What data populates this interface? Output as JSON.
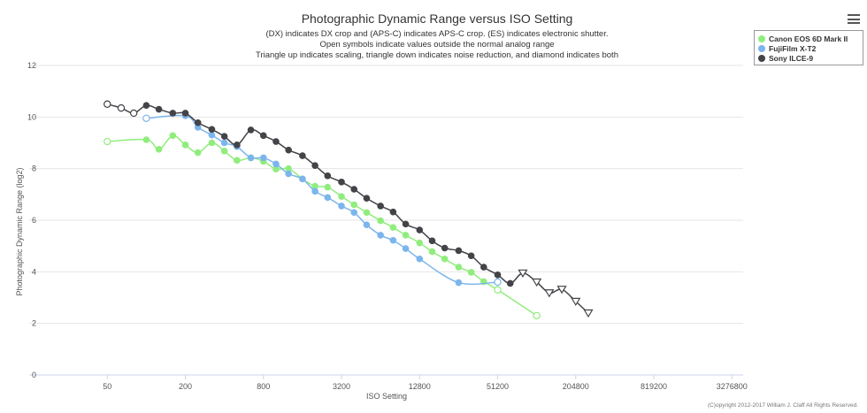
{
  "chart_data": {
    "type": "line",
    "title": "Photographic Dynamic Range versus ISO Setting",
    "subtitle_lines": [
      "(DX) indicates DX crop and (APS-C) indicates APS-C crop. (ES) indicates electronic shutter.",
      "Open symbols indicate values outside the normal analog range",
      "Triangle up indicates scaling, triangle down indicates noise reduction, and diamond indicates both"
    ],
    "xlabel": "ISO Setting",
    "ylabel": "Photographic Dynamic Range (log2)",
    "x_scale": "log",
    "xlim": [
      12.5,
      4000000
    ],
    "ylim": [
      0,
      12
    ],
    "x_ticks": [
      50,
      200,
      800,
      3200,
      12800,
      51200,
      204800,
      819200,
      3276800
    ],
    "x_tick_labels": [
      "50",
      "200",
      "800",
      "3200",
      "12800",
      "51200",
      "204800",
      "819200",
      "3276800"
    ],
    "y_ticks": [
      0,
      2,
      4,
      6,
      8,
      10,
      12
    ],
    "y_tick_labels": [
      "0",
      "2",
      "4",
      "6",
      "8",
      "10",
      "12"
    ],
    "grid": true,
    "legend_position": "top-right",
    "credit": "(C)opyright 2012-2017 William J. Claff All Rights Reserved.",
    "series": [
      {
        "name": "Canon EOS 6D Mark II",
        "color": "#90ed7d",
        "points": [
          {
            "x": 50,
            "y": 9.05,
            "marker": "circle-open"
          },
          {
            "x": 100,
            "y": 9.12,
            "marker": "circle"
          },
          {
            "x": 125,
            "y": 8.75,
            "marker": "circle"
          },
          {
            "x": 160,
            "y": 9.28,
            "marker": "circle"
          },
          {
            "x": 200,
            "y": 8.92,
            "marker": "circle"
          },
          {
            "x": 250,
            "y": 8.62,
            "marker": "circle"
          },
          {
            "x": 320,
            "y": 9.0,
            "marker": "circle"
          },
          {
            "x": 400,
            "y": 8.68,
            "marker": "circle"
          },
          {
            "x": 500,
            "y": 8.32,
            "marker": "circle"
          },
          {
            "x": 640,
            "y": 8.42,
            "marker": "circle"
          },
          {
            "x": 800,
            "y": 8.28,
            "marker": "circle"
          },
          {
            "x": 1000,
            "y": 7.98,
            "marker": "circle"
          },
          {
            "x": 1250,
            "y": 8.0,
            "marker": "circle"
          },
          {
            "x": 1600,
            "y": 7.6,
            "marker": "circle"
          },
          {
            "x": 2000,
            "y": 7.32,
            "marker": "circle"
          },
          {
            "x": 2500,
            "y": 7.28,
            "marker": "circle"
          },
          {
            "x": 3200,
            "y": 6.92,
            "marker": "circle"
          },
          {
            "x": 4000,
            "y": 6.6,
            "marker": "circle"
          },
          {
            "x": 5000,
            "y": 6.3,
            "marker": "circle"
          },
          {
            "x": 6400,
            "y": 5.98,
            "marker": "circle"
          },
          {
            "x": 8000,
            "y": 5.72,
            "marker": "circle"
          },
          {
            "x": 10000,
            "y": 5.42,
            "marker": "circle"
          },
          {
            "x": 12800,
            "y": 5.12,
            "marker": "circle"
          },
          {
            "x": 16000,
            "y": 4.78,
            "marker": "circle"
          },
          {
            "x": 20000,
            "y": 4.5,
            "marker": "circle"
          },
          {
            "x": 25600,
            "y": 4.18,
            "marker": "circle"
          },
          {
            "x": 32000,
            "y": 3.98,
            "marker": "circle"
          },
          {
            "x": 40000,
            "y": 3.62,
            "marker": "circle"
          },
          {
            "x": 51200,
            "y": 3.3,
            "marker": "circle-open"
          },
          {
            "x": 102400,
            "y": 2.3,
            "marker": "circle-open"
          }
        ]
      },
      {
        "name": "FujiFilm X-T2",
        "color": "#7cb5ec",
        "points": [
          {
            "x": 100,
            "y": 9.95,
            "marker": "circle-open"
          },
          {
            "x": 200,
            "y": 10.05,
            "marker": "circle"
          },
          {
            "x": 250,
            "y": 9.6,
            "marker": "circle"
          },
          {
            "x": 320,
            "y": 9.3,
            "marker": "circle"
          },
          {
            "x": 400,
            "y": 9.0,
            "marker": "circle"
          },
          {
            "x": 500,
            "y": 8.85,
            "marker": "circle"
          },
          {
            "x": 640,
            "y": 8.42,
            "marker": "circle"
          },
          {
            "x": 800,
            "y": 8.42,
            "marker": "circle"
          },
          {
            "x": 1000,
            "y": 8.18,
            "marker": "circle"
          },
          {
            "x": 1250,
            "y": 7.8,
            "marker": "circle"
          },
          {
            "x": 1600,
            "y": 7.6,
            "marker": "circle"
          },
          {
            "x": 2000,
            "y": 7.12,
            "marker": "circle"
          },
          {
            "x": 2500,
            "y": 6.88,
            "marker": "circle"
          },
          {
            "x": 3200,
            "y": 6.55,
            "marker": "circle"
          },
          {
            "x": 4000,
            "y": 6.3,
            "marker": "circle"
          },
          {
            "x": 5000,
            "y": 5.82,
            "marker": "circle"
          },
          {
            "x": 6400,
            "y": 5.42,
            "marker": "circle"
          },
          {
            "x": 8000,
            "y": 5.22,
            "marker": "circle"
          },
          {
            "x": 10000,
            "y": 4.9,
            "marker": "circle"
          },
          {
            "x": 12800,
            "y": 4.5,
            "marker": "circle"
          },
          {
            "x": 25600,
            "y": 3.58,
            "marker": "circle"
          },
          {
            "x": 51200,
            "y": 3.6,
            "marker": "circle-open"
          }
        ]
      },
      {
        "name": "Sony ILCE-9",
        "color": "#434348",
        "points": [
          {
            "x": 50,
            "y": 10.5,
            "marker": "circle-open"
          },
          {
            "x": 64,
            "y": 10.35,
            "marker": "circle-open"
          },
          {
            "x": 80,
            "y": 10.15,
            "marker": "circle-open"
          },
          {
            "x": 100,
            "y": 10.45,
            "marker": "circle"
          },
          {
            "x": 125,
            "y": 10.3,
            "marker": "circle"
          },
          {
            "x": 160,
            "y": 10.15,
            "marker": "circle"
          },
          {
            "x": 200,
            "y": 10.15,
            "marker": "circle"
          },
          {
            "x": 250,
            "y": 9.78,
            "marker": "circle"
          },
          {
            "x": 320,
            "y": 9.52,
            "marker": "circle"
          },
          {
            "x": 400,
            "y": 9.25,
            "marker": "circle"
          },
          {
            "x": 500,
            "y": 8.92,
            "marker": "circle"
          },
          {
            "x": 640,
            "y": 9.5,
            "marker": "circle"
          },
          {
            "x": 800,
            "y": 9.28,
            "marker": "circle"
          },
          {
            "x": 1000,
            "y": 9.05,
            "marker": "circle"
          },
          {
            "x": 1250,
            "y": 8.72,
            "marker": "circle"
          },
          {
            "x": 1600,
            "y": 8.5,
            "marker": "circle"
          },
          {
            "x": 2000,
            "y": 8.12,
            "marker": "circle"
          },
          {
            "x": 2500,
            "y": 7.72,
            "marker": "circle"
          },
          {
            "x": 3200,
            "y": 7.48,
            "marker": "circle"
          },
          {
            "x": 4000,
            "y": 7.2,
            "marker": "circle"
          },
          {
            "x": 5000,
            "y": 6.85,
            "marker": "circle"
          },
          {
            "x": 6400,
            "y": 6.55,
            "marker": "circle"
          },
          {
            "x": 8000,
            "y": 6.32,
            "marker": "circle"
          },
          {
            "x": 10000,
            "y": 5.85,
            "marker": "circle"
          },
          {
            "x": 12800,
            "y": 5.62,
            "marker": "circle"
          },
          {
            "x": 16000,
            "y": 5.2,
            "marker": "circle"
          },
          {
            "x": 20000,
            "y": 4.92,
            "marker": "circle"
          },
          {
            "x": 25600,
            "y": 4.82,
            "marker": "circle"
          },
          {
            "x": 32000,
            "y": 4.62,
            "marker": "circle"
          },
          {
            "x": 40000,
            "y": 4.18,
            "marker": "circle"
          },
          {
            "x": 51200,
            "y": 3.88,
            "marker": "circle"
          },
          {
            "x": 64000,
            "y": 3.55,
            "marker": "circle"
          },
          {
            "x": 80000,
            "y": 3.95,
            "marker": "triangle-down-open"
          },
          {
            "x": 102400,
            "y": 3.6,
            "marker": "triangle-down-open"
          },
          {
            "x": 128000,
            "y": 3.18,
            "marker": "triangle-down-open"
          },
          {
            "x": 160000,
            "y": 3.32,
            "marker": "triangle-down-open"
          },
          {
            "x": 204800,
            "y": 2.85,
            "marker": "triangle-down-open"
          },
          {
            "x": 256000,
            "y": 2.4,
            "marker": "triangle-down-open"
          }
        ]
      }
    ]
  },
  "menu_icon": "hamburger-menu-icon"
}
